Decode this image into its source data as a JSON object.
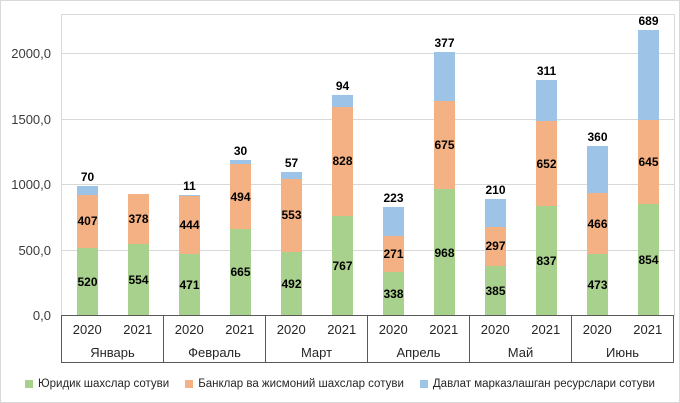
{
  "chart_data": {
    "type": "bar",
    "stacked": true,
    "title": "",
    "grid": true,
    "legend_position": "bottom",
    "y_axis": {
      "ticks": [
        "0,0",
        "500,0",
        "1000,0",
        "1500,0",
        "2000,0"
      ],
      "tick_values": [
        0,
        500,
        1000,
        1500,
        2000
      ],
      "max": 2300
    },
    "series": [
      {
        "name": "Юридик шахслар сотуви",
        "color": "#A9D18E"
      },
      {
        "name": "Банклар ва жисмоний шахслар сотуви",
        "color": "#F4B183"
      },
      {
        "name": "Давлат марказлашган ресурслари сотуви",
        "color": "#9DC3E6"
      }
    ],
    "groups": [
      {
        "month": "Январь",
        "bars": [
          {
            "year": "2020",
            "values": [
              520,
              407,
              70
            ]
          },
          {
            "year": "2021",
            "values": [
              554,
              378,
              null
            ]
          }
        ]
      },
      {
        "month": "Февраль",
        "bars": [
          {
            "year": "2020",
            "values": [
              471,
              444,
              11
            ]
          },
          {
            "year": "2021",
            "values": [
              665,
              494,
              30
            ]
          }
        ]
      },
      {
        "month": "Март",
        "bars": [
          {
            "year": "2020",
            "values": [
              492,
              553,
              57
            ]
          },
          {
            "year": "2021",
            "values": [
              767,
              828,
              94
            ]
          }
        ]
      },
      {
        "month": "Апрель",
        "bars": [
          {
            "year": "2020",
            "values": [
              338,
              271,
              223
            ]
          },
          {
            "year": "2021",
            "values": [
              968,
              675,
              377
            ]
          }
        ]
      },
      {
        "month": "Май",
        "bars": [
          {
            "year": "2020",
            "values": [
              385,
              297,
              210
            ]
          },
          {
            "year": "2021",
            "values": [
              837,
              652,
              311
            ]
          }
        ]
      },
      {
        "month": "Июнь",
        "bars": [
          {
            "year": "2020",
            "values": [
              473,
              466,
              360
            ]
          },
          {
            "year": "2021",
            "values": [
              854,
              645,
              689
            ]
          }
        ]
      }
    ],
    "colors": {
      "gridline": "#D9D9D9",
      "axis_box_border": "#595959",
      "data_label": "#000000",
      "tick_text": "#3B3B3B"
    }
  }
}
